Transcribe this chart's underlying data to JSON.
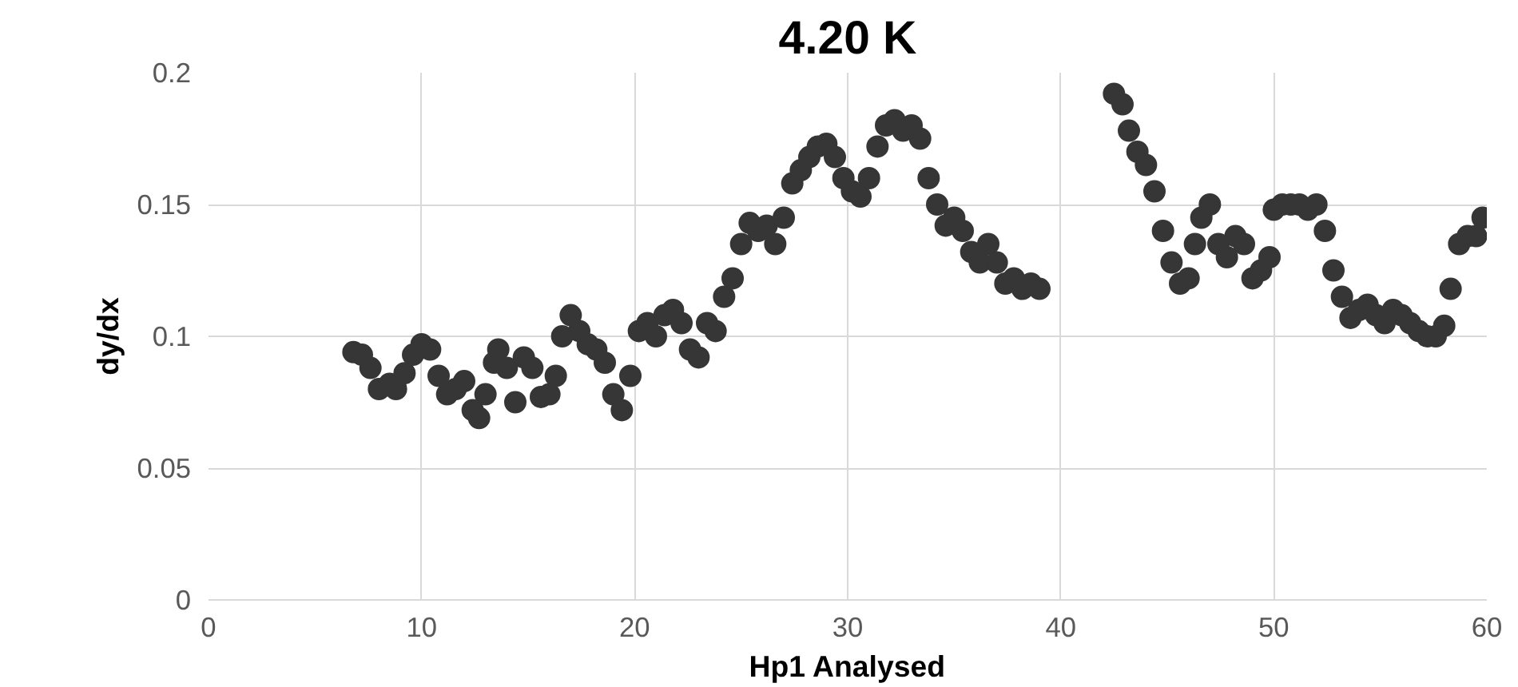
{
  "chart_data": {
    "type": "scatter",
    "title": "4.20 K",
    "xlabel": "Hp1 Analysed",
    "ylabel": "dy/dx",
    "xlim": [
      0,
      60
    ],
    "xticks": [
      0,
      10,
      20,
      30,
      40,
      50,
      60
    ],
    "ylim": [
      0,
      0.2
    ],
    "yticks": [
      0,
      0.05,
      0.1,
      0.15,
      0.2
    ],
    "grid": true,
    "marker": "circle",
    "series": [
      {
        "color": "#363636",
        "x": [
          6.8,
          7.2,
          7.6,
          8.0,
          8.5,
          8.8,
          9.2,
          9.6,
          10.0,
          10.4,
          10.8,
          11.2,
          11.6,
          12.0,
          12.4,
          12.7,
          13.0,
          13.4,
          13.6,
          14.0,
          14.4,
          14.8,
          15.2,
          15.6,
          16.0,
          16.3,
          16.6,
          17.0,
          17.4,
          17.8,
          18.2,
          18.6,
          19.0,
          19.4,
          19.8,
          20.2,
          20.6,
          21.0,
          21.4,
          21.8,
          22.2,
          22.6,
          23.0,
          23.4,
          23.8,
          24.2,
          24.6,
          25.0,
          25.4,
          25.8,
          26.2,
          26.6,
          27.0,
          27.4,
          27.8,
          28.2,
          28.6,
          29.0,
          29.4,
          29.8,
          30.2,
          30.6,
          31.0,
          31.4,
          31.8,
          32.2,
          32.6,
          33.0,
          33.4,
          33.8,
          34.2,
          34.6,
          35.0,
          35.4,
          35.8,
          36.2,
          36.6,
          37.0,
          37.4,
          37.8,
          38.2,
          38.6,
          39.0,
          42.5,
          42.9,
          43.2,
          43.6,
          44.0,
          44.4,
          44.8,
          45.2,
          45.6,
          46.0,
          46.3,
          46.6,
          47.0,
          47.4,
          47.8,
          48.2,
          48.6,
          49.0,
          49.4,
          49.8,
          50.0,
          50.4,
          50.8,
          51.2,
          51.6,
          52.0,
          52.4,
          52.8,
          53.2,
          53.6,
          54.0,
          54.4,
          54.8,
          55.2,
          55.6,
          56.0,
          56.4,
          56.8,
          57.2,
          57.6,
          58.0,
          58.3,
          58.7,
          59.1,
          59.5,
          59.8
        ],
        "values": [
          0.094,
          0.093,
          0.088,
          0.08,
          0.082,
          0.08,
          0.086,
          0.093,
          0.097,
          0.095,
          0.085,
          0.078,
          0.08,
          0.083,
          0.072,
          0.069,
          0.078,
          0.09,
          0.095,
          0.088,
          0.075,
          0.092,
          0.088,
          0.077,
          0.078,
          0.085,
          0.1,
          0.108,
          0.102,
          0.097,
          0.095,
          0.09,
          0.078,
          0.072,
          0.085,
          0.102,
          0.105,
          0.1,
          0.108,
          0.11,
          0.105,
          0.095,
          0.092,
          0.105,
          0.102,
          0.115,
          0.122,
          0.135,
          0.143,
          0.14,
          0.142,
          0.135,
          0.145,
          0.158,
          0.163,
          0.168,
          0.172,
          0.173,
          0.168,
          0.16,
          0.155,
          0.153,
          0.16,
          0.172,
          0.18,
          0.182,
          0.178,
          0.18,
          0.175,
          0.16,
          0.15,
          0.142,
          0.145,
          0.14,
          0.132,
          0.128,
          0.135,
          0.128,
          0.12,
          0.122,
          0.118,
          0.12,
          0.118,
          0.192,
          0.188,
          0.178,
          0.17,
          0.165,
          0.155,
          0.14,
          0.128,
          0.12,
          0.122,
          0.135,
          0.145,
          0.15,
          0.135,
          0.13,
          0.138,
          0.135,
          0.122,
          0.125,
          0.13,
          0.148,
          0.15,
          0.15,
          0.15,
          0.148,
          0.15,
          0.14,
          0.125,
          0.115,
          0.107,
          0.11,
          0.112,
          0.108,
          0.105,
          0.11,
          0.108,
          0.105,
          0.102,
          0.1,
          0.1,
          0.104,
          0.118,
          0.135,
          0.138,
          0.138,
          0.145
        ]
      }
    ]
  }
}
